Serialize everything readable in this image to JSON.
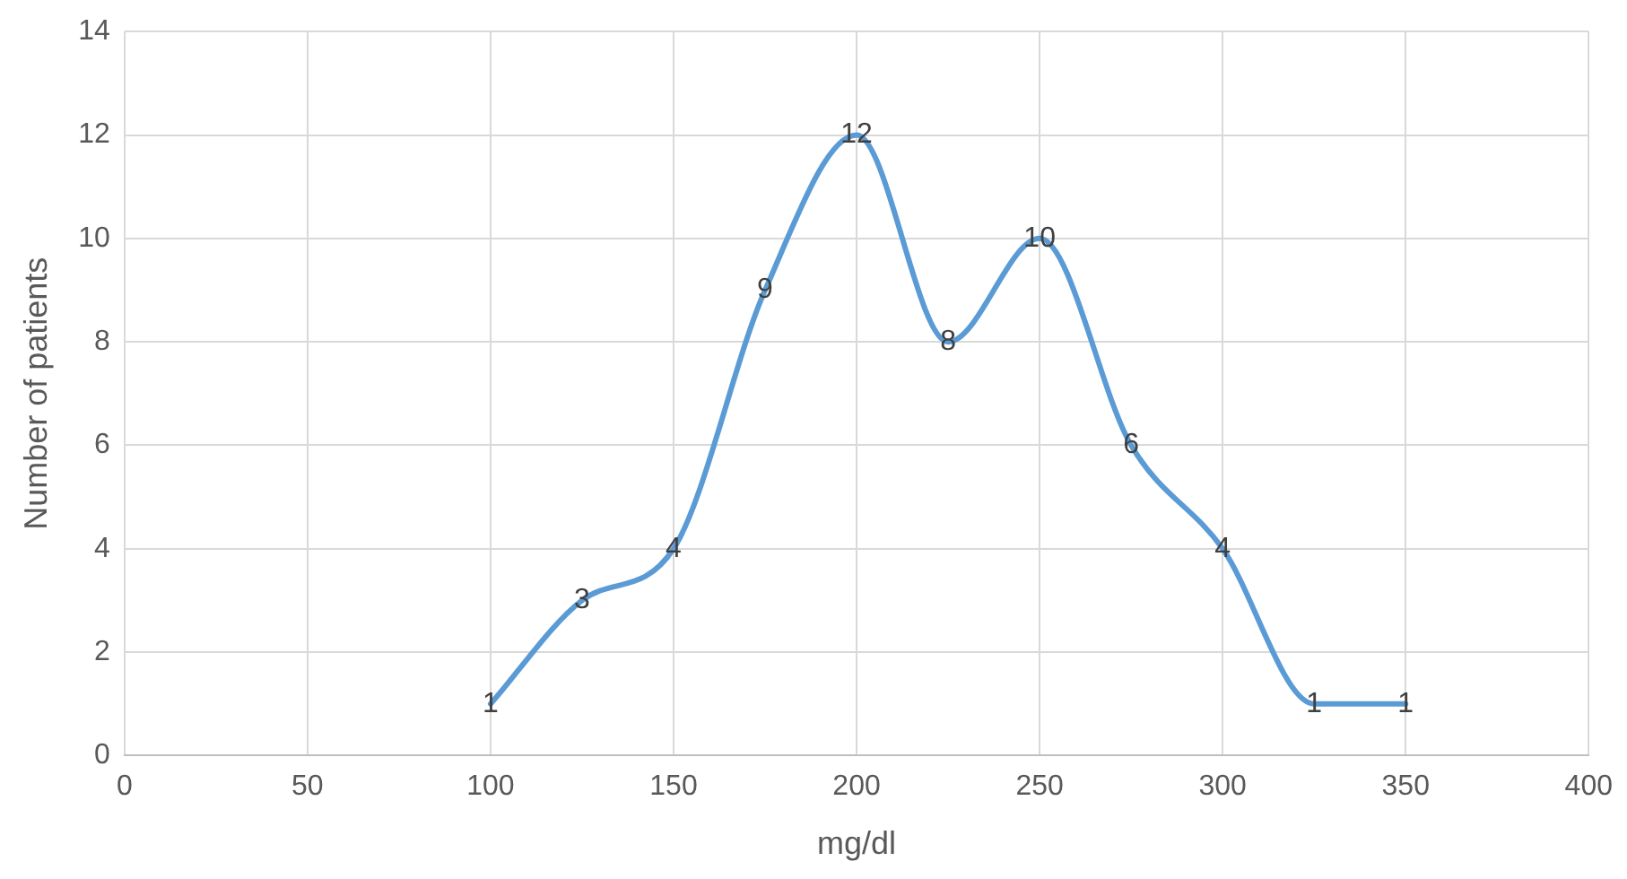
{
  "chart_data": {
    "type": "line",
    "xlabel": "mg/dl",
    "ylabel": "Number of patients",
    "x": [
      100,
      125,
      150,
      175,
      200,
      225,
      250,
      275,
      300,
      325,
      350
    ],
    "series": [
      {
        "color": "#5b9bd5",
        "values": [
          1,
          3,
          4,
          9,
          12,
          8,
          10,
          6,
          4,
          1,
          1
        ]
      }
    ],
    "xlim": [
      0,
      400
    ],
    "xticks": [
      0,
      50,
      100,
      150,
      200,
      250,
      300,
      350,
      400
    ],
    "ylim": [
      0,
      14
    ],
    "yticks": [
      0,
      2,
      4,
      6,
      8,
      10,
      12,
      14
    ],
    "grid": true,
    "legend": false,
    "marker": "none",
    "line_style": "solid",
    "data_labels": true
  }
}
